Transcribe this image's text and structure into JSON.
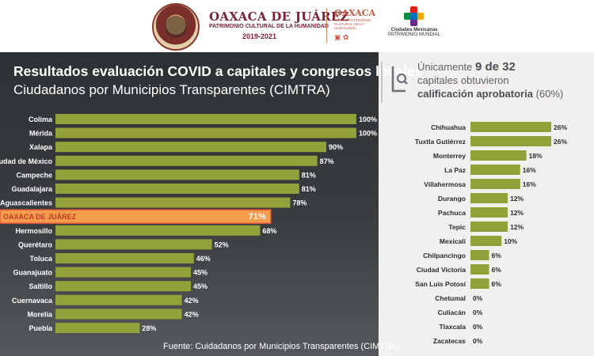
{
  "header": {
    "city_title": "OAXACA DE JUÁREZ",
    "city_subtitle": "PATRIMONIO CULTURAL DE LA HUMANIDAD",
    "city_years": "2019-2021",
    "brand2_title": "OAXACA",
    "brand2_sub": "CIUDAD PATRIMONIO CULTURAL DE LA HUMANIDAD",
    "brand3_title": "Ciudades Mexicanas",
    "brand3_sub": "PATRIMONIO MUNDIAL"
  },
  "title": {
    "main": "Resultados evaluación COVID a capitales y congresos locales",
    "sub": "Ciudadanos por Municipios Transparentes (CIMTRA)"
  },
  "summary": {
    "line1_pre": "Únicamente",
    "line1_big": "9 de 32",
    "line2": "capitales obtuvieron",
    "line3_bold": "calificación aprobatoria",
    "line3_rest": "(60%)"
  },
  "source": "Fuente: Cuidadanos por Municipios Transparentes (CIMTRA)",
  "colors": {
    "bar": "#93a13a",
    "highlight": "#f39c4c",
    "highlight_border": "#e8593b"
  },
  "chart_data": [
    {
      "type": "bar",
      "orientation": "horizontal",
      "categories": [
        "Colima",
        "Mérida",
        "Xalapa",
        "Ciudad de México",
        "Campeche",
        "Guadalajara",
        "Aguascalientes",
        "OAXACA DE JUÁREZ",
        "Hermosillo",
        "Querétaro",
        "Toluca",
        "Guanajuato",
        "Saltillo",
        "Cuernavaca",
        "Morelia",
        "Puebla"
      ],
      "values": [
        100,
        100,
        90,
        87,
        81,
        81,
        78,
        71,
        68,
        52,
        46,
        45,
        45,
        42,
        42,
        28
      ],
      "labels": [
        "100%",
        "100%",
        "90%",
        "87%",
        "81%",
        "81%",
        "78%",
        "71%",
        "68%",
        "52%",
        "46%",
        "45%",
        "45%",
        "42%",
        "42%",
        "28%"
      ],
      "highlight": "OAXACA DE JUÁREZ",
      "xlim": [
        0,
        100
      ]
    },
    {
      "type": "bar",
      "orientation": "horizontal",
      "categories": [
        "Chihuahua",
        "Tuxtla Gutiérrez",
        "Monterrey",
        "La Paz",
        "Villahermosa",
        "Durango",
        "Pachuca",
        "Tepic",
        "Mexicali",
        "Chilpancingo",
        "Ciudad Victoria",
        "San Luis Potosí",
        "Chetumal",
        "Culiacán",
        "Tlaxcala",
        "Zacatecas"
      ],
      "values": [
        26,
        26,
        18,
        16,
        16,
        12,
        12,
        12,
        10,
        6,
        6,
        6,
        0,
        0,
        0,
        0
      ],
      "labels": [
        "26%",
        "26%",
        "18%",
        "16%",
        "16%",
        "12%",
        "12%",
        "12%",
        "10%",
        "6%",
        "6%",
        "6%",
        "0%",
        "0%",
        "0%",
        "0%"
      ],
      "xlim": [
        0,
        26
      ]
    }
  ]
}
